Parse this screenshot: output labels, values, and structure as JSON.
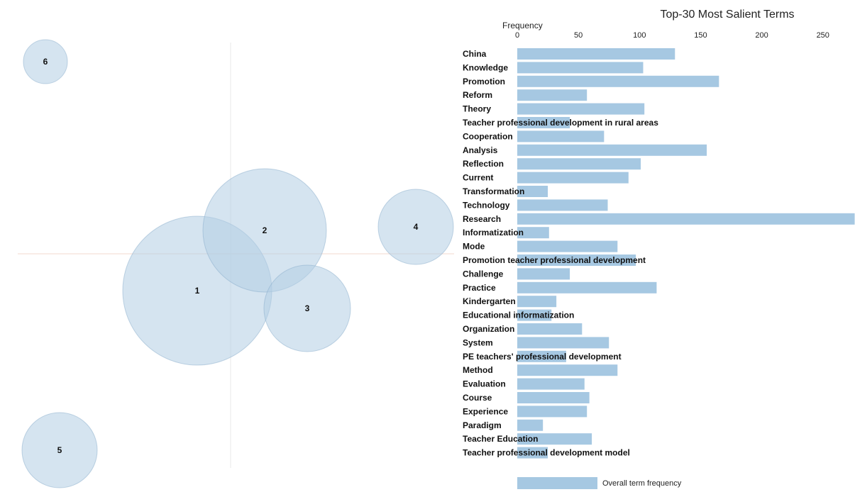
{
  "intertopic_map": {
    "topics": [
      {
        "label": "1"
      },
      {
        "label": "2"
      },
      {
        "label": "3"
      },
      {
        "label": "4"
      },
      {
        "label": "5"
      },
      {
        "label": "6"
      }
    ],
    "bubble_color": "#b3cde3",
    "bubble_stroke": "#8aaecb",
    "axis_color": "#e8e8e8"
  },
  "chart_data": {
    "type": "bar",
    "title": "Top-30 Most Salient Terms",
    "xlabel": "Frequency",
    "xlim": [
      0,
      275
    ],
    "ticks": [
      0,
      50,
      100,
      150,
      200,
      250
    ],
    "categories": [
      "China",
      "Knowledge",
      "Promotion",
      "Reform",
      "Theory",
      "Teacher professional development in rural areas",
      "Cooperation",
      "Analysis",
      "Reflection",
      "Current",
      "Transformation",
      "Technology",
      "Research",
      "Informatization",
      "Mode",
      "Promotion teacher professional development",
      "Challenge",
      "Practice",
      "Kindergarten",
      "Educational informatization",
      "Organization",
      "System",
      "PE teachers' professional development",
      "Method",
      "Evaluation",
      "Course",
      "Experience",
      "Paradigm",
      "Teacher Education",
      "Teacher professional development model"
    ],
    "series": [
      {
        "name": "Overall term frequency",
        "values": [
          129,
          103,
          165,
          57,
          104,
          43,
          71,
          155,
          101,
          91,
          25,
          74,
          276,
          26,
          82,
          97,
          43,
          114,
          32,
          28,
          53,
          75,
          40,
          82,
          55,
          59,
          57,
          21,
          61,
          25
        ]
      }
    ],
    "bar_color": "#a6c8e2",
    "legend_position": "bottom"
  }
}
